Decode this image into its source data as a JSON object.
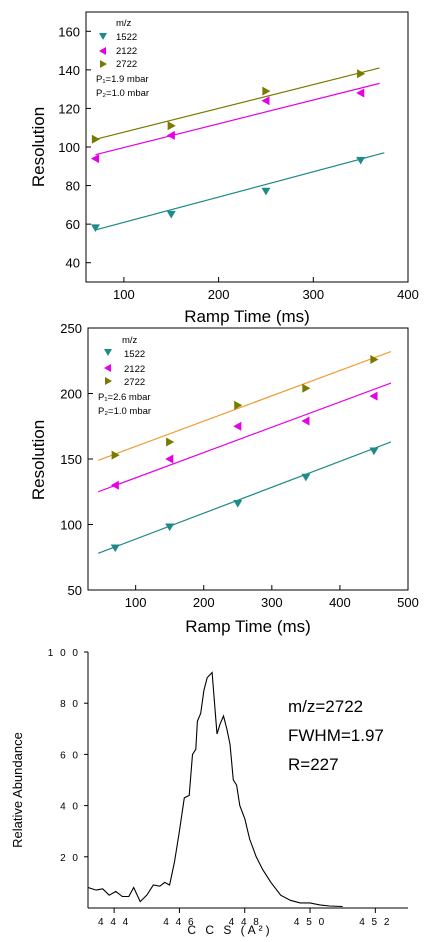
{
  "chart_data": [
    {
      "type": "scatter",
      "xlabel": "Ramp Time (ms)",
      "ylabel": "Resolution",
      "xlim": [
        60,
        400
      ],
      "ylim": [
        30,
        170
      ],
      "xticks": [
        100,
        200,
        300,
        400
      ],
      "yticks": [
        40,
        60,
        80,
        100,
        120,
        140,
        160
      ],
      "legend_title": "m/z",
      "legend_placement": "top-left",
      "conditions": [
        "P₁=1.9 mbar",
        "P₂=1.0 mbar"
      ],
      "series": [
        {
          "name": "1522",
          "color": "#1f8a8a",
          "marker": "triangle-down",
          "x": [
            70,
            150,
            250,
            350
          ],
          "y": [
            58,
            65,
            77,
            93
          ],
          "fit": [
            [
              70,
              57
            ],
            [
              375,
              97
            ]
          ]
        },
        {
          "name": "2122",
          "color": "#e600e6",
          "marker": "triangle-left",
          "x": [
            70,
            150,
            250,
            350
          ],
          "y": [
            94,
            106,
            124,
            128
          ],
          "fit": [
            [
              70,
              96
            ],
            [
              370,
              133
            ]
          ]
        },
        {
          "name": "2722",
          "color": "#7a7a00",
          "marker": "triangle-right",
          "x": [
            70,
            150,
            250,
            350
          ],
          "y": [
            104,
            111,
            129,
            138
          ],
          "fit": [
            [
              70,
              104
            ],
            [
              370,
              141
            ]
          ]
        }
      ]
    },
    {
      "type": "scatter",
      "xlabel": "Ramp Time (ms)",
      "ylabel": "Resolution",
      "xlim": [
        30,
        500
      ],
      "ylim": [
        50,
        250
      ],
      "xticks": [
        100,
        200,
        300,
        400,
        500
      ],
      "yticks": [
        50,
        100,
        150,
        200,
        250
      ],
      "legend_title": "m/z",
      "legend_placement": "top-left",
      "conditions": [
        "P₁=2.6 mbar",
        "P₂=1.0 mbar"
      ],
      "series": [
        {
          "name": "1522",
          "color": "#1f8a8a",
          "marker": "triangle-down",
          "x": [
            70,
            150,
            250,
            350,
            450
          ],
          "y": [
            82,
            98,
            116,
            136,
            156
          ],
          "fit": [
            [
              45,
              78
            ],
            [
              475,
              163
            ]
          ]
        },
        {
          "name": "2122",
          "color": "#e600e6",
          "marker": "triangle-left",
          "x": [
            70,
            150,
            250,
            350,
            450
          ],
          "y": [
            130,
            150,
            175,
            179,
            198
          ],
          "fit": [
            [
              45,
              125
            ],
            [
              475,
              208
            ]
          ]
        },
        {
          "name": "2722",
          "color": "#7a7a00",
          "marker": "triangle-right",
          "x": [
            70,
            150,
            250,
            350,
            450
          ],
          "y": [
            153,
            163,
            191,
            204,
            226
          ],
          "fit": [
            [
              45,
              149
            ],
            [
              475,
              232
            ]
          ],
          "fit_color": "#f29a2e"
        }
      ]
    },
    {
      "type": "line",
      "xlabel": "C C S (A²)",
      "ylabel": "Relative Abundance",
      "xlim": [
        443.2,
        453.0
      ],
      "ylim": [
        0,
        100
      ],
      "xticks": [
        444,
        446,
        448,
        450,
        452
      ],
      "xtick_labels": [
        "4 4 4",
        "4 4 6",
        "4 4 8",
        "4 5 0",
        "4 5 2"
      ],
      "yticks": [
        20,
        40,
        60,
        80,
        100
      ],
      "ytick_labels": [
        "2 0",
        "4 0",
        "6 0",
        "8 0",
        "1 0 0"
      ],
      "annotations": [
        "m/z=2722",
        "FWHM=1.97",
        "R=227"
      ],
      "series": [
        {
          "name": "",
          "color": "#000000",
          "x": [
            443.2,
            443.45,
            443.65,
            443.85,
            444.05,
            444.25,
            444.45,
            444.6,
            444.8,
            445.0,
            445.2,
            445.4,
            445.55,
            445.7,
            445.85,
            446.0,
            446.15,
            446.3,
            446.4,
            446.5,
            446.55,
            446.65,
            446.75,
            446.85,
            447.0,
            447.15,
            447.25,
            447.35,
            447.45,
            447.55,
            447.65,
            447.75,
            447.85,
            448.0,
            448.15,
            448.35,
            448.55,
            448.8,
            449.1,
            449.4,
            449.7,
            450.0,
            450.3,
            450.6,
            451.0
          ],
          "y": [
            8,
            7,
            7.5,
            5,
            6.5,
            4.5,
            4.5,
            8,
            2.5,
            5,
            9,
            8.5,
            10,
            9,
            18,
            30,
            43,
            44,
            60,
            62,
            73,
            76,
            85,
            90,
            92,
            68,
            72,
            75,
            70,
            64,
            50,
            48,
            40,
            35,
            27,
            20,
            15,
            10,
            5,
            3,
            2,
            2,
            1.2,
            0.8,
            0.6
          ]
        }
      ]
    }
  ]
}
